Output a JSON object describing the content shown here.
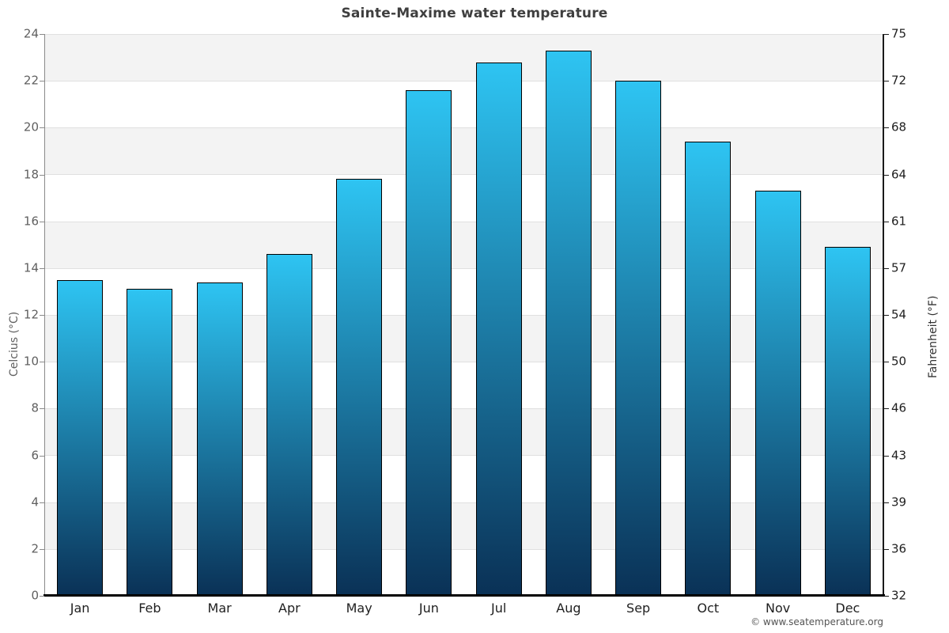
{
  "title": "Sainte-Maxime water temperature",
  "watermark": "© www.seatemperature.org",
  "colors": {
    "bar_gradient_top": "#2ec4f2",
    "bar_gradient_bottom": "#0a3156",
    "band": "#f3f3f3",
    "gridline": "#e0e0e0",
    "title_text": "#3f3f3f",
    "left_axis_text": "#606060",
    "right_axis_text": "#1f1f1f"
  },
  "chart_data": {
    "type": "bar",
    "title": "Sainte-Maxime water temperature",
    "categories": [
      "Jan",
      "Feb",
      "Mar",
      "Apr",
      "May",
      "Jun",
      "Jul",
      "Aug",
      "Sep",
      "Oct",
      "Nov",
      "Dec"
    ],
    "values": [
      13.5,
      13.1,
      13.4,
      14.6,
      17.8,
      21.6,
      22.8,
      23.3,
      22.0,
      19.4,
      17.3,
      14.9
    ],
    "value_unit": "°C",
    "xlabel": "",
    "ylabel_left": "Celcius (°C)",
    "ylabel_right": "Fahrenheit (°F)",
    "ylim_left": [
      0,
      24
    ],
    "yticks_left": [
      24,
      22,
      20,
      18,
      16,
      14,
      12,
      10,
      8,
      6,
      4,
      2,
      0
    ],
    "yticks_right": [
      75,
      72,
      68,
      64,
      61,
      57,
      54,
      50,
      46,
      43,
      39,
      36,
      32
    ],
    "grid": "alternating horizontal bands every 2°C",
    "legend": "none"
  }
}
